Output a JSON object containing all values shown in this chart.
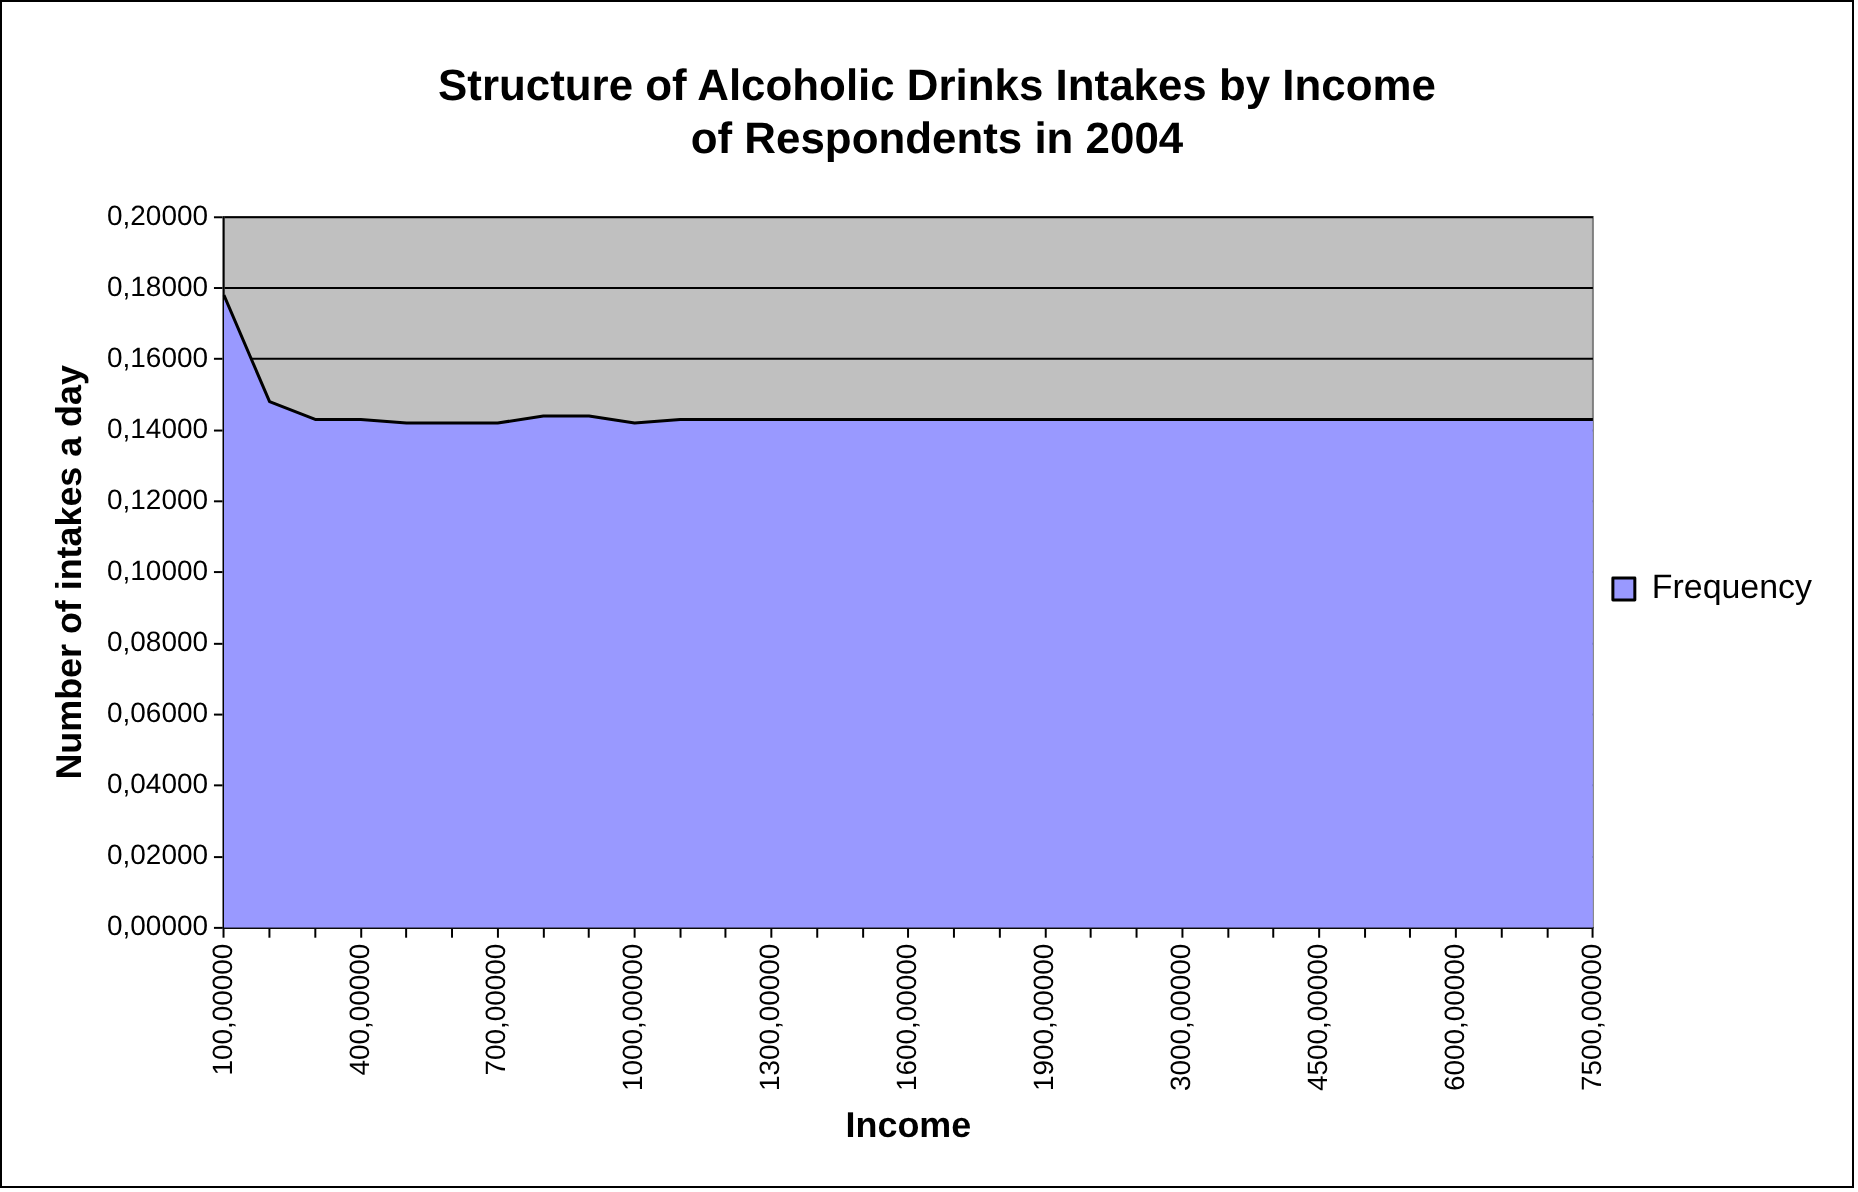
{
  "chart_data": {
    "type": "area",
    "title": [
      "Structure of Alcoholic Drinks Intakes by Income",
      "of Respondents in 2004"
    ],
    "xlabel": "Income",
    "ylabel": "Number of intakes a day",
    "categories": [
      "100,00000",
      null,
      null,
      "400,00000",
      null,
      null,
      "700,00000",
      null,
      null,
      "1000,00000",
      null,
      null,
      "1300,00000",
      null,
      null,
      "1600,00000",
      null,
      null,
      "1900,00000",
      null,
      null,
      "3000,00000",
      null,
      null,
      "4500,00000",
      null,
      null,
      "6000,00000",
      null,
      null,
      "7500,00000"
    ],
    "series": [
      {
        "name": "Frequency",
        "color": "#9999ff",
        "values": [
          0.178,
          0.148,
          0.143,
          0.143,
          0.142,
          0.142,
          0.142,
          0.144,
          0.144,
          0.142,
          0.143,
          0.143,
          0.143,
          0.143,
          0.143,
          0.143,
          0.143,
          0.143,
          0.143,
          0.143,
          0.143,
          0.143,
          0.143,
          0.143,
          0.143,
          0.143,
          0.143,
          0.143,
          0.143,
          0.143,
          0.143
        ]
      }
    ],
    "ylim": [
      0,
      0.2
    ],
    "yticks": [
      {
        "value": 0,
        "label": "0,00000"
      },
      {
        "value": 0.02,
        "label": "0,02000"
      },
      {
        "value": 0.04,
        "label": "0,04000"
      },
      {
        "value": 0.06,
        "label": "0,06000"
      },
      {
        "value": 0.08,
        "label": "0,08000"
      },
      {
        "value": 0.1,
        "label": "0,10000"
      },
      {
        "value": 0.12,
        "label": "0,12000"
      },
      {
        "value": 0.14,
        "label": "0,14000"
      },
      {
        "value": 0.16,
        "label": "0,16000"
      },
      {
        "value": 0.18,
        "label": "0,18000"
      },
      {
        "value": 0.2,
        "label": "0,20000"
      }
    ],
    "grid": "y",
    "legend": "right",
    "marker": "none"
  }
}
